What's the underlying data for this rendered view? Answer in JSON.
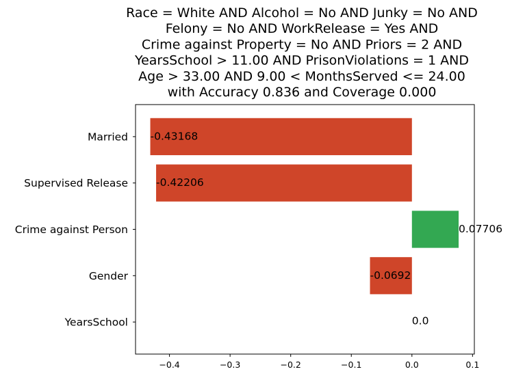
{
  "chart_data": {
    "type": "bar",
    "orientation": "horizontal",
    "title_lines": [
      "Race = White AND Alcohol = No AND Junky = No AND",
      "Felony = No AND WorkRelease = Yes AND",
      "Crime against Property = No AND Priors = 2 AND",
      "YearsSchool > 11.00 AND PrisonViolations = 1 AND",
      "Age > 33.00 AND 9.00 < MonthsServed <= 24.00",
      "with Accuracy 0.836 and Coverage 0.000"
    ],
    "categories": [
      "Married",
      "Supervised Release",
      "Crime against Person",
      "Gender",
      "YearsSchool"
    ],
    "values": [
      -0.43168,
      -0.42206,
      0.07706,
      -0.0692,
      0.0
    ],
    "data_labels": [
      "-0.43168",
      "-0.42206",
      "0.07706",
      "-0.0692",
      "0.0"
    ],
    "xlim": [
      -0.456,
      0.103
    ],
    "xticks": [
      -0.4,
      -0.3,
      -0.2,
      -0.1,
      0.0,
      0.1
    ],
    "xtick_labels": [
      "−0.4",
      "−0.3",
      "−0.2",
      "−0.1",
      "0.0",
      "0.1"
    ],
    "xlabel": "",
    "ylabel": "",
    "grid": false,
    "colors": {
      "positive": "#33a852",
      "negative": "#cf4529"
    }
  }
}
